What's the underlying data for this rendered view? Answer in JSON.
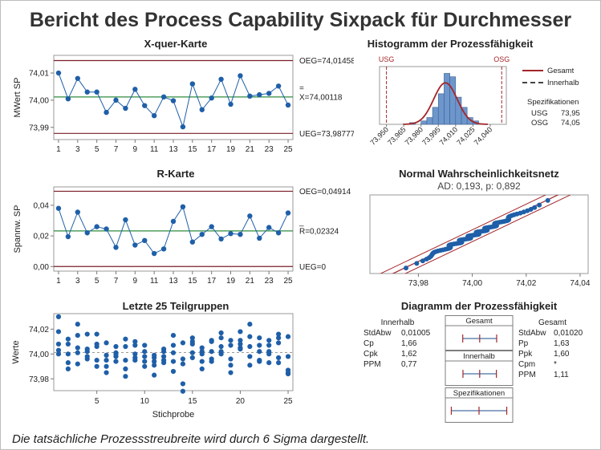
{
  "title": "Bericht des Process Capability Sixpack für Durchmesser",
  "footnote": "Die tatsächliche Prozessstreubreite wird durch 6 Sigma dargestellt.",
  "colors": {
    "point": "#1f5fa8",
    "center_line": "#2e8b3e",
    "limit_line": "#7a1e28",
    "hist_bar": "#6d97cc",
    "curve": "#a3262a",
    "spec_line": "#a3262a"
  },
  "chart_data": [
    {
      "type": "line",
      "title": "X-quer-Karte",
      "ylabel": "MWert SP",
      "xticks": [
        1,
        3,
        5,
        7,
        9,
        11,
        13,
        15,
        17,
        19,
        21,
        23,
        25
      ],
      "yticks": [
        "73,99",
        "74,00",
        "74,01"
      ],
      "ylim": [
        73.9855,
        74.0165
      ],
      "x": [
        1,
        2,
        3,
        4,
        5,
        6,
        7,
        8,
        9,
        10,
        11,
        12,
        13,
        14,
        15,
        16,
        17,
        18,
        19,
        20,
        21,
        22,
        23,
        24,
        25
      ],
      "values": [
        74.01,
        74.0005,
        74.008,
        74.003,
        74.003,
        73.9955,
        74.0,
        73.997,
        74.004,
        73.998,
        73.9943,
        74.0012,
        73.9998,
        73.9902,
        74.006,
        73.9965,
        74.0008,
        74.0077,
        73.9985,
        74.009,
        74.0015,
        74.002,
        74.0025,
        74.0052,
        73.9982
      ],
      "limits": {
        "ucl": 74.01458,
        "center": 74.00118,
        "lcl": 73.98777
      },
      "limit_labels": {
        "ucl": "OEG=74,01458",
        "center_bar": "=",
        "center": "X=74,00118",
        "lcl": "UEG=73,98777"
      }
    },
    {
      "type": "line",
      "title": "R-Karte",
      "ylabel": "Spannw. SP",
      "xticks": [
        1,
        3,
        5,
        7,
        9,
        11,
        13,
        15,
        17,
        19,
        21,
        23,
        25
      ],
      "yticks": [
        "0,00",
        "0,02",
        "0,04"
      ],
      "ylim": [
        -0.003,
        0.052
      ],
      "x": [
        1,
        2,
        3,
        4,
        5,
        6,
        7,
        8,
        9,
        10,
        11,
        12,
        13,
        14,
        15,
        16,
        17,
        18,
        19,
        20,
        21,
        22,
        23,
        24,
        25
      ],
      "values": [
        0.038,
        0.0195,
        0.0355,
        0.022,
        0.026,
        0.0245,
        0.0125,
        0.0305,
        0.014,
        0.017,
        0.0085,
        0.0115,
        0.0295,
        0.039,
        0.016,
        0.021,
        0.026,
        0.018,
        0.0215,
        0.021,
        0.033,
        0.0185,
        0.0255,
        0.022,
        0.035
      ],
      "limits": {
        "ucl": 0.04914,
        "center": 0.02324,
        "lcl": 0
      },
      "limit_labels": {
        "ucl": "OEG=0,04914",
        "center_bar": "_",
        "center": "R=0,02324",
        "lcl": "UEG=0"
      }
    },
    {
      "type": "scatter",
      "title": "Letzte 25 Teilgruppen",
      "xlabel": "Stichprobe",
      "ylabel": "Werte",
      "xticks": [
        5,
        10,
        15,
        20,
        25
      ],
      "yticks": [
        "73,98",
        "74,00",
        "74,02"
      ],
      "ylim": [
        73.9705,
        74.0325
      ],
      "groups": [
        [
          74.0,
          74.03,
          74.018,
          74.008,
          74.003
        ],
        [
          73.988,
          74.008,
          74.012,
          73.993,
          74.0
        ],
        [
          73.992,
          74.024,
          74.015,
          74.005,
          74.001
        ],
        [
          73.998,
          73.996,
          74.016,
          74.002,
          74.004
        ],
        [
          73.99,
          74.016,
          74.008,
          73.995,
          74.006
        ],
        [
          73.985,
          74.009,
          73.995,
          73.99,
          73.999
        ],
        [
          73.994,
          73.998,
          74.0,
          74.006,
          74.001
        ],
        [
          73.982,
          74.012,
          73.995,
          73.988,
          74.006
        ],
        [
          73.995,
          73.997,
          74.01,
          74.0,
          74.007
        ],
        [
          73.99,
          74.007,
          74.002,
          73.994,
          73.998
        ],
        [
          73.994,
          73.991,
          73.999,
          73.997,
          73.983
        ],
        [
          73.995,
          74.004,
          73.993,
          73.998,
          74.002
        ],
        [
          73.986,
          74.007,
          74.015,
          74.001,
          73.994
        ],
        [
          73.97,
          73.976,
          73.992,
          74.009,
          73.996
        ],
        [
          74.013,
          74.001,
          74.008,
          73.997,
          74.01
        ],
        [
          73.988,
          74.002,
          73.994,
          74.0,
          74.005
        ],
        [
          74.011,
          73.994,
          73.996,
          74.01,
          74.002
        ],
        [
          74.006,
          74.013,
          74.017,
          74.002,
          74.0
        ],
        [
          73.991,
          74.011,
          73.996,
          74.007,
          73.985
        ],
        [
          74.018,
          74.008,
          74.005,
          74.011,
          74.004
        ],
        [
          73.991,
          74.014,
          74.024,
          74.006,
          73.998
        ],
        [
          73.995,
          74.007,
          74.013,
          74.002,
          73.994
        ],
        [
          73.993,
          74.002,
          74.011,
          74.007,
          74.0
        ],
        [
          74.009,
          74.016,
          74.013,
          73.993,
          73.997
        ],
        [
          73.984,
          74.014,
          73.998,
          73.987,
          73.985
        ]
      ]
    },
    {
      "type": "bar",
      "title": "Histogramm der Prozessfähigkeit",
      "xticks": [
        "73,950",
        "73,965",
        "73,980",
        "73,995",
        "74,010",
        "74,025",
        "74,040"
      ],
      "xtick_values": [
        73.95,
        73.965,
        73.98,
        73.995,
        74.01,
        74.025,
        74.04
      ],
      "xlim": [
        73.944,
        74.054
      ],
      "bins": [
        73.97,
        73.975,
        73.98,
        73.985,
        73.99,
        73.995,
        74.0,
        74.005,
        74.01,
        74.015,
        74.02,
        74.025,
        74.03
      ],
      "counts": [
        1,
        0,
        2,
        4,
        10,
        18,
        30,
        28,
        16,
        10,
        4,
        2
      ],
      "max_count": 34,
      "usl": 74.05,
      "lsl": 73.95,
      "usl_label": "OSG",
      "lsl_label": "USG",
      "mean": 74.00118,
      "sd": 0.0102,
      "legend": [
        "Gesamt",
        "Innerhalb"
      ],
      "spec_title": "Spezifikationen",
      "spec": [
        {
          "label": "USG",
          "value": "73,95"
        },
        {
          "label": "OSG",
          "value": "74,05"
        }
      ]
    },
    {
      "type": "scatter",
      "title": "Normal Wahrscheinlichkeitsnetz",
      "subtitle": "AD: 0,193, p: 0,892",
      "xticks": [
        "73,98",
        "74,00",
        "74,02",
        "74,04"
      ],
      "xtick_values": [
        73.98,
        74.0,
        74.02,
        74.04
      ],
      "xlim": [
        73.962,
        74.043
      ],
      "zlim": [
        -3.0,
        3.0
      ],
      "mean": 74.00118,
      "sd": 0.0102,
      "n": 125
    },
    {
      "type": "table",
      "title": "Diagramm der Prozessfähigkeit",
      "within": {
        "title": "Innerhalb",
        "rows": [
          {
            "label": "StdAbw",
            "value": "0,01005"
          },
          {
            "label": "Cp",
            "value": "1,66"
          },
          {
            "label": "Cpk",
            "value": "1,62"
          },
          {
            "label": "PPM",
            "value": "0,77"
          }
        ]
      },
      "overall": {
        "title": "Gesamt",
        "rows": [
          {
            "label": "StdAbw",
            "value": "0,01020"
          },
          {
            "label": "Pp",
            "value": "1,63"
          },
          {
            "label": "Ppk",
            "value": "1,60"
          },
          {
            "label": "Cpm",
            "value": "*"
          },
          {
            "label": "PPM",
            "value": "1,11"
          }
        ]
      },
      "intervals": [
        {
          "name": "Gesamt",
          "low": 73.9706,
          "mid": 74.00118,
          "high": 74.0318
        },
        {
          "name": "Innerhalb",
          "low": 73.971,
          "mid": 74.00118,
          "high": 74.0313
        },
        {
          "name": "Spezifikationen",
          "low": 73.95,
          "mid": 74.0,
          "high": 74.05
        }
      ]
    }
  ]
}
